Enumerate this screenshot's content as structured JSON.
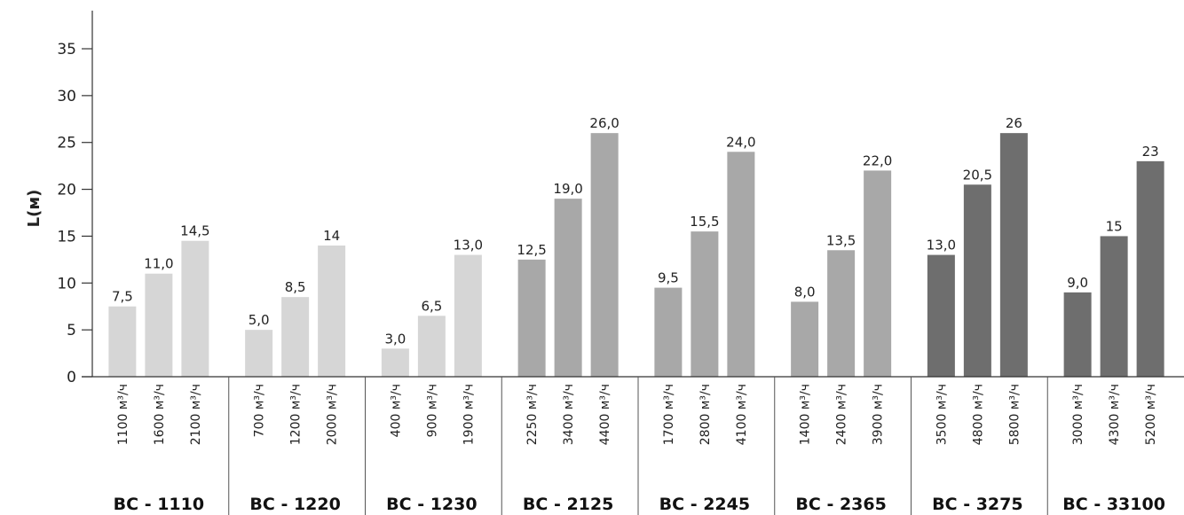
{
  "chart_data": {
    "type": "bar",
    "ylabel": "L(м)",
    "ylim": [
      0,
      37
    ],
    "yticks": [
      0,
      5,
      10,
      15,
      20,
      25,
      30,
      35
    ],
    "grid": false,
    "legend": "none",
    "groups": [
      {
        "name": "ВС - 1110",
        "color": "#d6d6d6",
        "bars": [
          {
            "category": "1100 м³/ч",
            "value": 7.5,
            "label": "7,5"
          },
          {
            "category": "1600 м³/ч",
            "value": 11.0,
            "label": "11,0"
          },
          {
            "category": "2100 м³/ч",
            "value": 14.5,
            "label": "14,5"
          }
        ]
      },
      {
        "name": "ВС - 1220",
        "color": "#d6d6d6",
        "bars": [
          {
            "category": "700 м³/ч",
            "value": 5.0,
            "label": "5,0"
          },
          {
            "category": "1200 м³/ч",
            "value": 8.5,
            "label": "8,5"
          },
          {
            "category": "2000 м³/ч",
            "value": 14,
            "label": "14"
          }
        ]
      },
      {
        "name": "ВС - 1230",
        "color": "#d6d6d6",
        "bars": [
          {
            "category": "400 м³/ч",
            "value": 3.0,
            "label": "3,0"
          },
          {
            "category": "900 м³/ч",
            "value": 6.5,
            "label": "6,5"
          },
          {
            "category": "1900 м³/ч",
            "value": 13.0,
            "label": "13,0"
          }
        ]
      },
      {
        "name": "ВС - 2125",
        "color": "#a8a8a8",
        "bars": [
          {
            "category": "2250 м³/ч",
            "value": 12.5,
            "label": "12,5"
          },
          {
            "category": "3400 м³/ч",
            "value": 19.0,
            "label": "19,0"
          },
          {
            "category": "4400 м³/ч",
            "value": 26.0,
            "label": "26,0"
          }
        ]
      },
      {
        "name": "ВС - 2245",
        "color": "#a8a8a8",
        "bars": [
          {
            "category": "1700 м³/ч",
            "value": 9.5,
            "label": "9,5"
          },
          {
            "category": "2800 м³/ч",
            "value": 15.5,
            "label": "15,5"
          },
          {
            "category": "4100 м³/ч",
            "value": 24.0,
            "label": "24,0"
          }
        ]
      },
      {
        "name": "ВС - 2365",
        "color": "#a8a8a8",
        "bars": [
          {
            "category": "1400 м³/ч",
            "value": 8.0,
            "label": "8,0"
          },
          {
            "category": "2400 м³/ч",
            "value": 13.5,
            "label": "13,5"
          },
          {
            "category": "3900 м³/ч",
            "value": 22.0,
            "label": "22,0"
          }
        ]
      },
      {
        "name": "ВС - 3275",
        "color": "#6e6e6e",
        "bars": [
          {
            "category": "3500 м³/ч",
            "value": 13.0,
            "label": "13,0"
          },
          {
            "category": "4800 м³/ч",
            "value": 20.5,
            "label": "20,5"
          },
          {
            "category": "5800 м³/ч",
            "value": 26,
            "label": "26"
          }
        ]
      },
      {
        "name": "ВС - 33100",
        "color": "#6e6e6e",
        "bars": [
          {
            "category": "3000 м³/ч",
            "value": 9.0,
            "label": "9,0"
          },
          {
            "category": "4300 м³/ч",
            "value": 15,
            "label": "15"
          },
          {
            "category": "5200 м³/ч",
            "value": 23,
            "label": "23"
          }
        ]
      }
    ]
  }
}
